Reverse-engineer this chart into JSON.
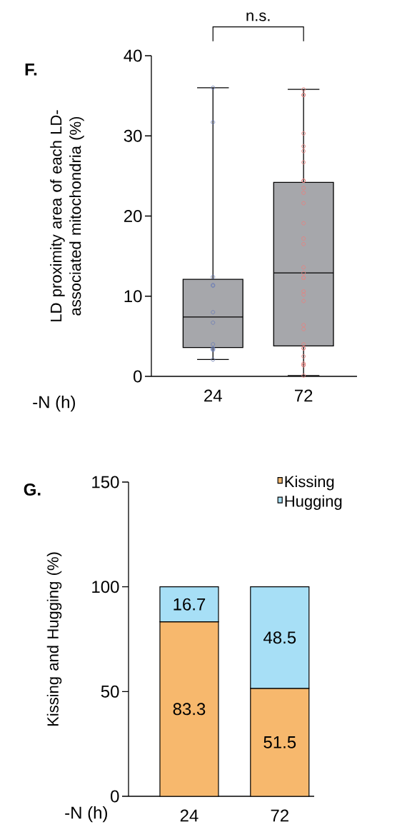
{
  "chart_data": [
    {
      "type": "box",
      "title": "F.",
      "xlabel": "-N (h)",
      "ylabel": "LD proximity area of each LD-associated mitochondria (%)",
      "categories": [
        "24",
        "72"
      ],
      "ylim": [
        0,
        40
      ],
      "yticks": [
        0,
        10,
        20,
        30,
        40
      ],
      "marker": "circle",
      "annotations": [
        "n.s."
      ],
      "series": [
        {
          "type": "box",
          "color": "#a6a7ab",
          "boxes": [
            {
              "low": 2.1,
              "q1": 3.6,
              "median": 7.4,
              "q3": 12.1,
              "high": 36.0
            },
            {
              "low": 0.1,
              "q1": 3.8,
              "median": 12.9,
              "q3": 24.2,
              "high": 35.8
            }
          ]
        },
        {
          "type": "scatter",
          "x": [
            "24",
            "24",
            "24",
            "24",
            "24",
            "24",
            "24",
            "24",
            "24",
            "24",
            "24",
            "24",
            "72",
            "72",
            "72",
            "72",
            "72",
            "72",
            "72",
            "72",
            "72",
            "72",
            "72",
            "72",
            "72",
            "72",
            "72",
            "72",
            "72",
            "72",
            "72",
            "72",
            "72",
            "72",
            "72",
            "72",
            "72",
            "72",
            "72",
            "72",
            "72",
            "72",
            "72",
            "72"
          ],
          "values": [
            36.0,
            31.7,
            12.4,
            11.4,
            11.3,
            8.0,
            6.7,
            4.0,
            3.5,
            3.4,
            3.3,
            2.1,
            35.8,
            35.1,
            35.1,
            30.3,
            28.7,
            28.1,
            26.7,
            24.4,
            24.4,
            23.5,
            22.9,
            21.6,
            19.1,
            17.2,
            16.5,
            13.6,
            12.9,
            12.3,
            12.3,
            10.6,
            10.2,
            9.4,
            6.4,
            5.9,
            4.0,
            3.5,
            3.5,
            2.5,
            1.6,
            1.4,
            1.4,
            0.1
          ],
          "colors": [
            "#6f80b6",
            "#6f80b6",
            "#6f80b6",
            "#6f80b6",
            "#6f80b6",
            "#6f80b6",
            "#6f80b6",
            "#6f80b6",
            "#6f80b6",
            "#6f80b6",
            "#6f80b6",
            "#6f80b6",
            "#e8817f",
            "#e8817f",
            "#e8817f",
            "#e8817f",
            "#e8817f",
            "#e8817f",
            "#e8817f",
            "#e8817f",
            "#e8817f",
            "#e8817f",
            "#e8817f",
            "#e8817f",
            "#e8817f",
            "#e8817f",
            "#e8817f",
            "#e8817f",
            "#e8817f",
            "#e8817f",
            "#e8817f",
            "#e8817f",
            "#e8817f",
            "#e8817f",
            "#e8817f",
            "#e8817f",
            "#e8817f",
            "#e8817f",
            "#e8817f",
            "#e8817f",
            "#e8817f",
            "#e8817f",
            "#e8817f",
            "#e8817f"
          ]
        }
      ]
    },
    {
      "type": "bar",
      "title": "G.",
      "xlabel": "-N (h)",
      "ylabel": "Kissing and Hugging (%)",
      "categories": [
        "24",
        "72"
      ],
      "ylim": [
        0,
        150
      ],
      "yticks": [
        0,
        50,
        100,
        150
      ],
      "stacked": true,
      "legend": "top right",
      "data_labels": true,
      "series": [
        {
          "name": "Kissing",
          "color": "#f7b86d",
          "values": [
            83.3,
            51.5
          ]
        },
        {
          "name": "Hugging",
          "color": "#a7dff6",
          "values": [
            16.7,
            48.5
          ]
        }
      ]
    }
  ]
}
